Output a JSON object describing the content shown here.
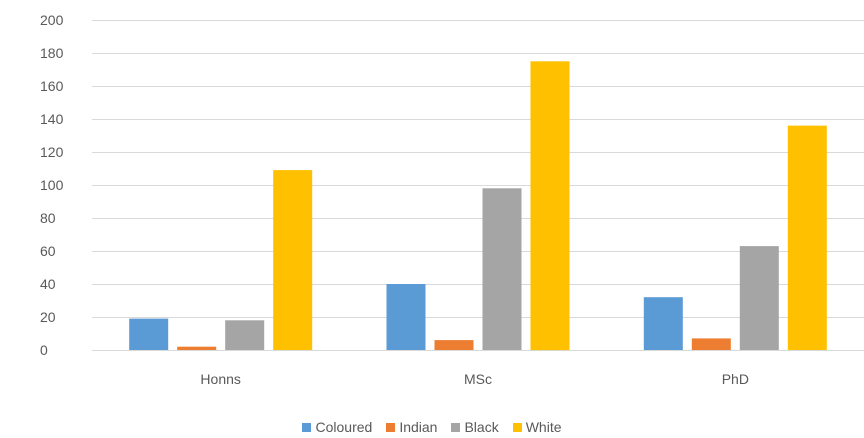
{
  "chart_data": {
    "type": "bar",
    "categories": [
      "Honns",
      "MSc",
      "PhD"
    ],
    "series": [
      {
        "name": "Coloured",
        "values": [
          19,
          40,
          32
        ],
        "color": "#5b9bd5"
      },
      {
        "name": "Indian",
        "values": [
          2,
          6,
          7
        ],
        "color": "#ed7d31"
      },
      {
        "name": "Black",
        "values": [
          18,
          98,
          63
        ],
        "color": "#a5a5a5"
      },
      {
        "name": "White",
        "values": [
          109,
          175,
          136
        ],
        "color": "#ffc000"
      }
    ],
    "ylim": [
      0,
      200
    ],
    "yticks": [
      0,
      20,
      40,
      60,
      80,
      100,
      120,
      140,
      160,
      180,
      200
    ],
    "grid": true,
    "legend_position": "bottom",
    "title": "",
    "xlabel": "",
    "ylabel": ""
  }
}
